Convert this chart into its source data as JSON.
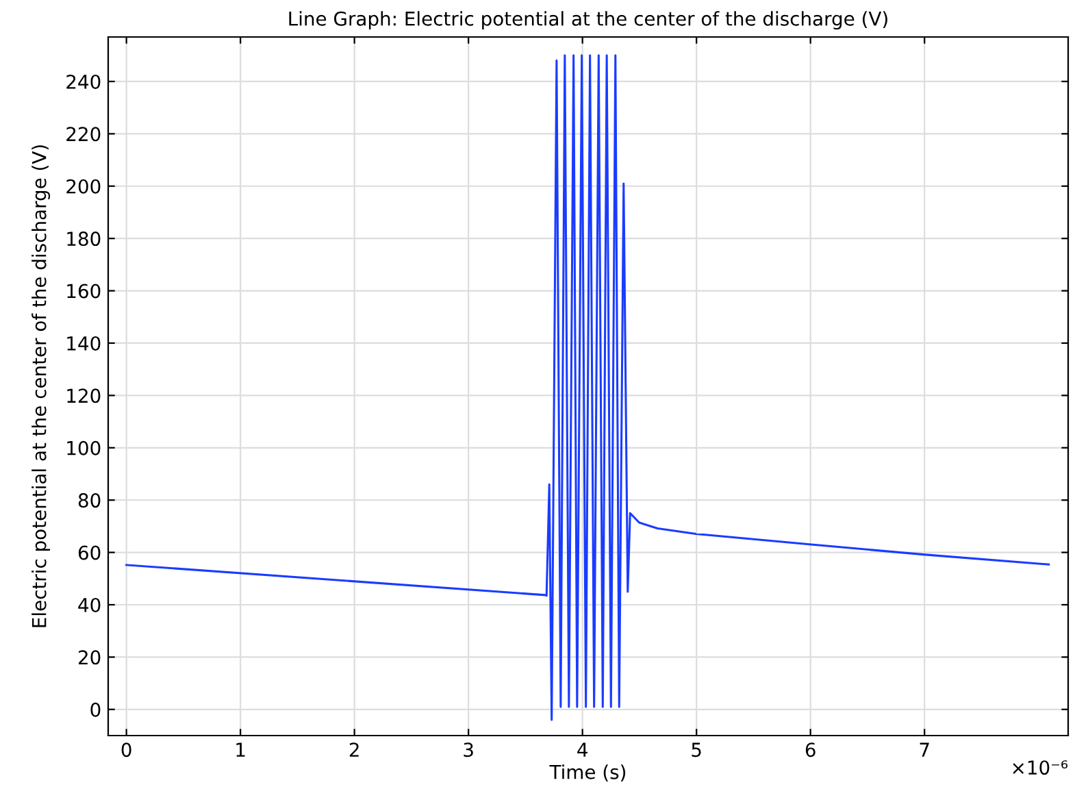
{
  "chart_data": {
    "type": "line",
    "title": "Line Graph: Electric potential at the center of the discharge (V)",
    "xlabel": "Time (s)",
    "ylabel": "Electric potential at the center of the discharge (V)",
    "annotations": [
      "×10⁻⁶"
    ],
    "xlim": [
      -0.16,
      8.26
    ],
    "ylim": [
      -10,
      257
    ],
    "xticks": [
      0,
      1,
      2,
      3,
      4,
      5,
      6,
      7
    ],
    "yticks": [
      0,
      20,
      40,
      60,
      80,
      100,
      120,
      140,
      160,
      180,
      200,
      220,
      240
    ],
    "grid": true,
    "series": [
      {
        "color": "#1a3cff",
        "x": [
          0,
          3.677,
          3.685,
          3.709,
          3.73,
          3.773,
          3.809,
          3.845,
          3.881,
          3.922,
          3.953,
          3.994,
          4.03,
          4.066,
          4.102,
          4.142,
          4.178,
          4.213,
          4.25,
          4.289,
          4.322,
          4.361,
          4.397,
          4.418,
          4.498,
          4.658,
          4.994,
          5.99,
          6.99,
          8.09
        ],
        "values": [
          55.2,
          43.7,
          43.5,
          86,
          -4,
          248,
          1,
          250,
          1,
          250,
          1,
          250,
          1,
          250,
          1,
          250,
          1,
          250,
          1,
          250,
          1,
          201,
          45,
          75,
          71.4,
          69.2,
          67.1,
          63.1,
          59.2,
          55.4
        ]
      }
    ]
  }
}
